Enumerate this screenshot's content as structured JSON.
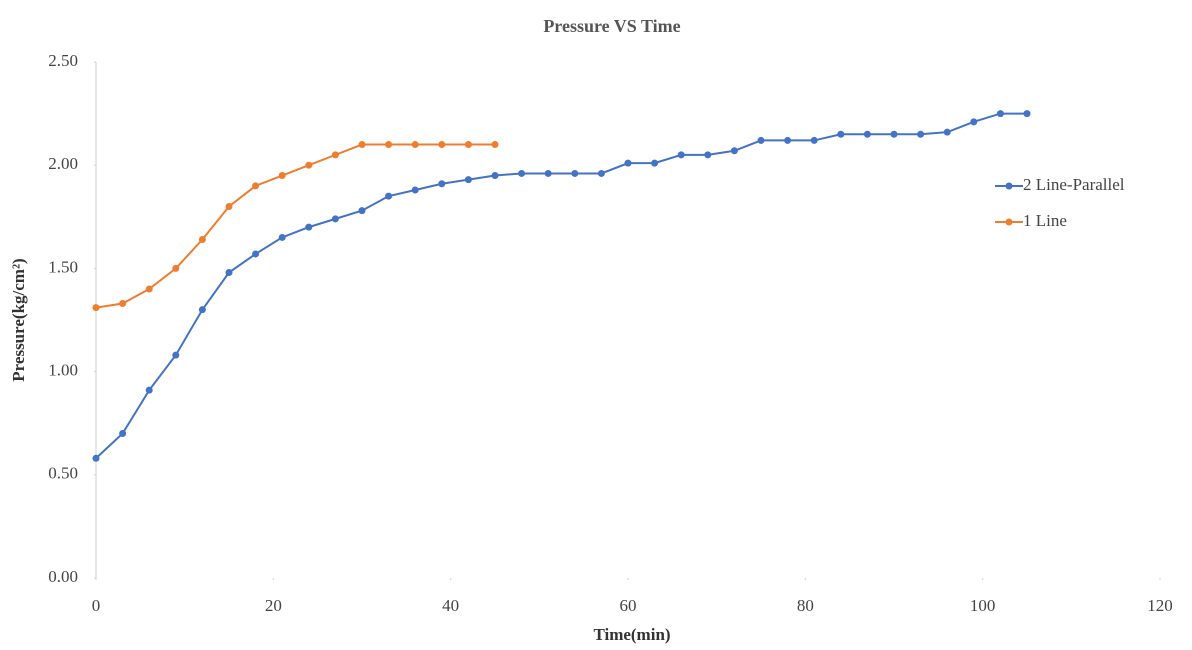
{
  "chart_data": {
    "type": "line",
    "title": "Pressure VS Time",
    "x_label": "Time(min)",
    "y_label": "Pressure(kg/cm²)",
    "xlim": [
      0,
      120
    ],
    "xticks": [
      0,
      20,
      40,
      60,
      80,
      100,
      120
    ],
    "ylim": [
      0,
      2.5
    ],
    "yticks": [
      {
        "value": 0,
        "label": "0.00"
      },
      {
        "value": 0.5,
        "label": "0.50"
      },
      {
        "value": 1,
        "label": "1.00"
      },
      {
        "value": 1.5,
        "label": "1.50"
      },
      {
        "value": 2,
        "label": "2.00"
      },
      {
        "value": 2.5,
        "label": "2.50"
      }
    ],
    "grid": false,
    "legend": "right",
    "series": [
      {
        "name": "2 Line-Parallel",
        "color": "#4472c4",
        "x": [
          0,
          3,
          6,
          9,
          12,
          15,
          18,
          21,
          24,
          27,
          30,
          33,
          36,
          39,
          42,
          45,
          48,
          51,
          54,
          57,
          60,
          63,
          66,
          69,
          72,
          75,
          78,
          81,
          84,
          87,
          90,
          93,
          96,
          99,
          102,
          105
        ],
        "values": [
          0.58,
          0.7,
          0.91,
          1.08,
          1.3,
          1.48,
          1.57,
          1.65,
          1.7,
          1.74,
          1.78,
          1.85,
          1.88,
          1.91,
          1.93,
          1.95,
          1.96,
          1.96,
          1.96,
          1.96,
          2.01,
          2.01,
          2.05,
          2.05,
          2.07,
          2.12,
          2.12,
          2.12,
          2.15,
          2.15,
          2.15,
          2.15,
          2.16,
          2.21,
          2.25,
          2.25
        ]
      },
      {
        "name": "1 Line",
        "color": "#ed7d31",
        "x": [
          0,
          3,
          6,
          9,
          12,
          15,
          18,
          21,
          24,
          27,
          30,
          33,
          36,
          39,
          42,
          45
        ],
        "values": [
          1.31,
          1.33,
          1.4,
          1.5,
          1.64,
          1.8,
          1.9,
          1.95,
          2.0,
          2.05,
          2.1,
          2.1,
          2.1,
          2.1,
          2.1,
          2.1
        ]
      }
    ]
  }
}
